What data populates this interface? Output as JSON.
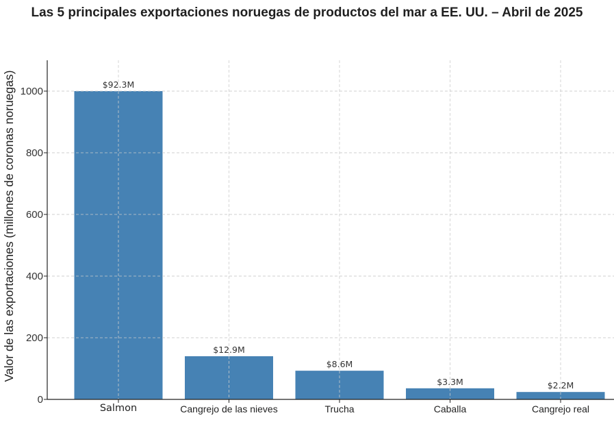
{
  "chart_data": {
    "type": "bar",
    "title": "Las 5 principales exportaciones noruegas de productos del mar a EE. UU. – Abril de 2025",
    "xlabel": "",
    "ylabel": "Valor de las exportaciones (millones de coronas noruegas)",
    "categories": [
      "Salmon",
      "Cangrejo de las nieves",
      "Trucha",
      "Caballa",
      "Cangrejo real"
    ],
    "values": [
      1000,
      140,
      93,
      36,
      24
    ],
    "data_labels": [
      "$92.3M",
      "$12.9M",
      "$8.6M",
      "$3.3M",
      "$2.2M"
    ],
    "y_ticks": [
      0,
      200,
      400,
      600,
      800,
      1000
    ],
    "ylim": [
      0,
      1100
    ],
    "grid": true,
    "bar_color": "#4682b4"
  }
}
